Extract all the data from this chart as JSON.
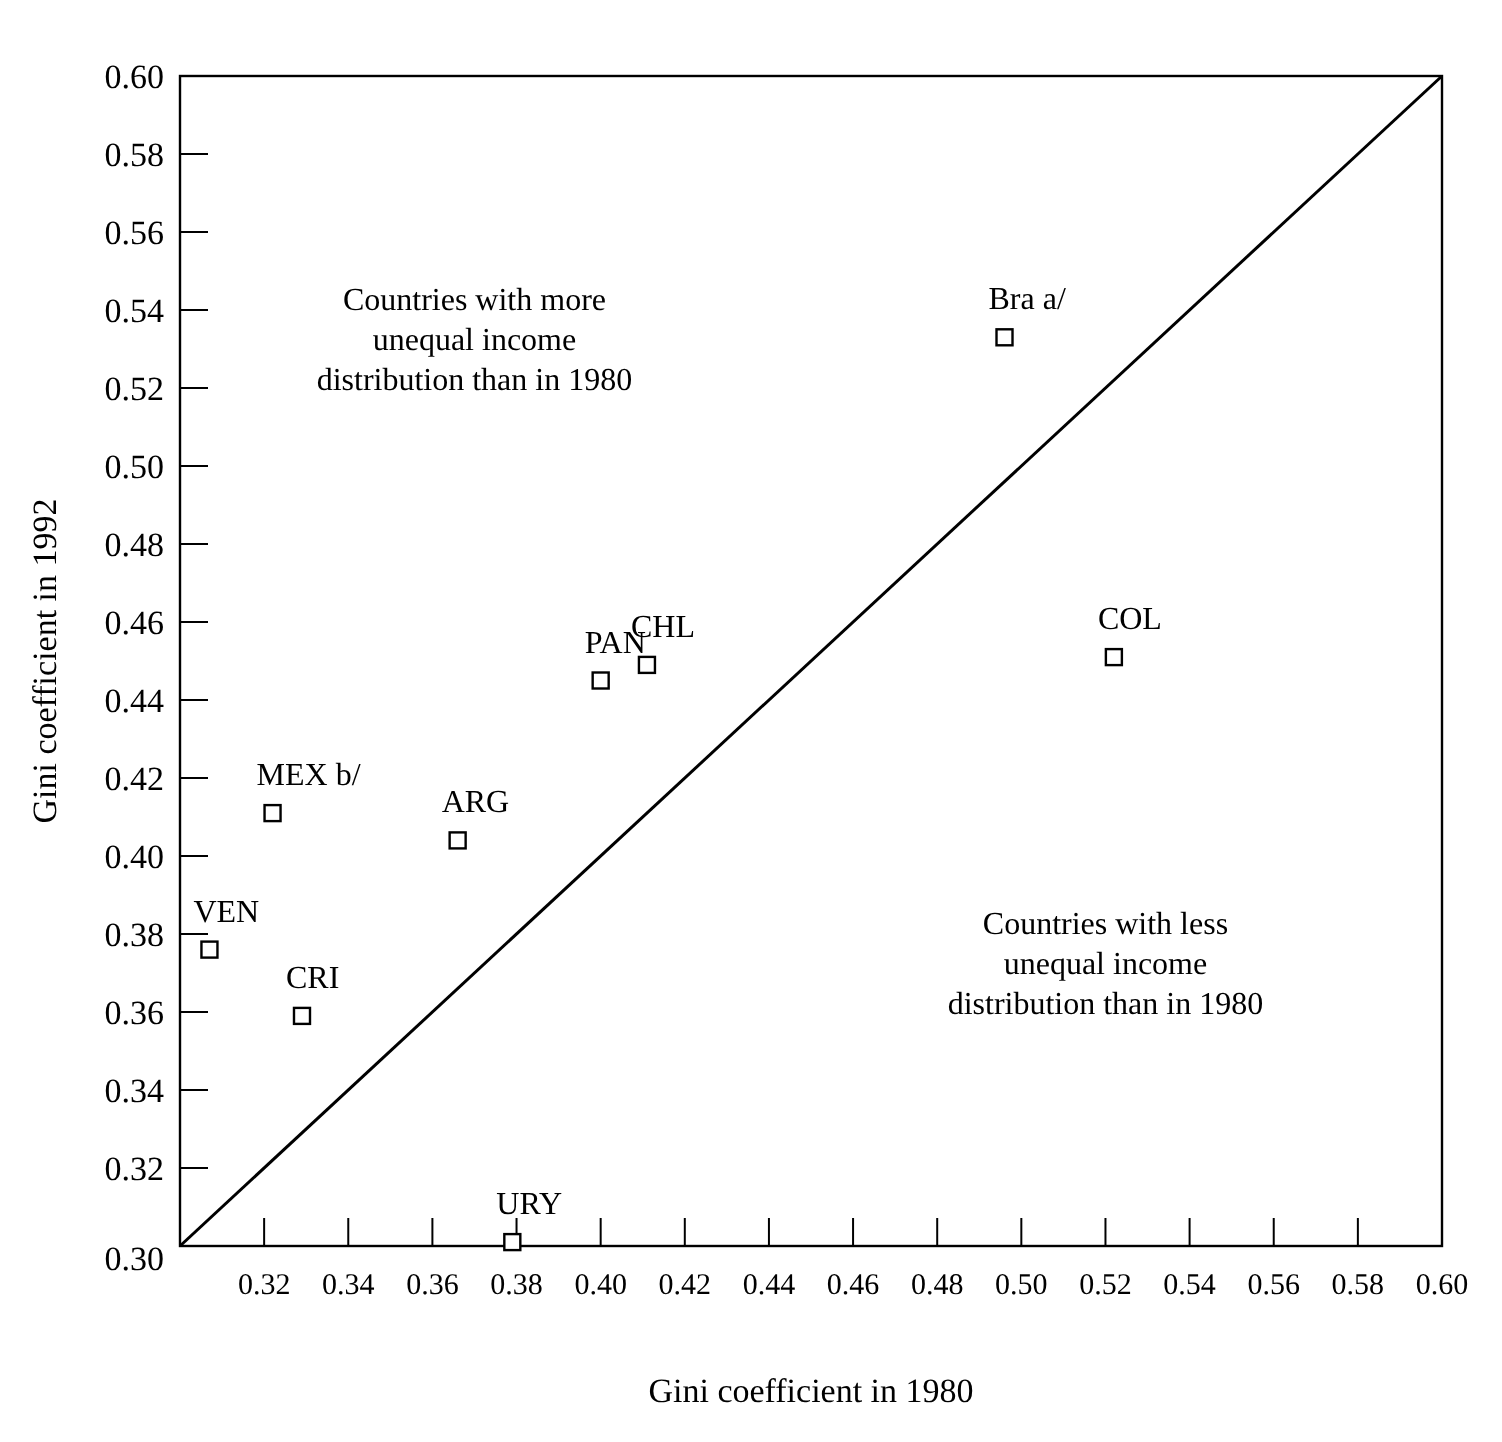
{
  "chart_data": {
    "type": "scatter",
    "xlabel": "Gini coefficient in 1980",
    "ylabel": "Gini coefficient in 1992",
    "xlim": [
      0.3,
      0.6
    ],
    "ylim": [
      0.3,
      0.6
    ],
    "xticks": [
      {
        "value": 0.32,
        "label": "0.32"
      },
      {
        "value": 0.34,
        "label": "0.34"
      },
      {
        "value": 0.36,
        "label": "0.36"
      },
      {
        "value": 0.38,
        "label": "0.38"
      },
      {
        "value": 0.4,
        "label": "0.40"
      },
      {
        "value": 0.42,
        "label": "0.42"
      },
      {
        "value": 0.44,
        "label": "0.44"
      },
      {
        "value": 0.46,
        "label": "0.46"
      },
      {
        "value": 0.48,
        "label": "0.48"
      },
      {
        "value": 0.5,
        "label": "0.50"
      },
      {
        "value": 0.52,
        "label": "0.52"
      },
      {
        "value": 0.54,
        "label": "0.54"
      },
      {
        "value": 0.56,
        "label": "0.56"
      },
      {
        "value": 0.58,
        "label": "0.58"
      },
      {
        "value": 0.6,
        "label": "0.60"
      }
    ],
    "yticks": [
      {
        "value": 0.3,
        "label": "0.30"
      },
      {
        "value": 0.32,
        "label": "0.32"
      },
      {
        "value": 0.34,
        "label": "0.34"
      },
      {
        "value": 0.36,
        "label": "0.36"
      },
      {
        "value": 0.38,
        "label": "0.38"
      },
      {
        "value": 0.4,
        "label": "0.40"
      },
      {
        "value": 0.42,
        "label": "0.42"
      },
      {
        "value": 0.44,
        "label": "0.44"
      },
      {
        "value": 0.46,
        "label": "0.46"
      },
      {
        "value": 0.48,
        "label": "0.48"
      },
      {
        "value": 0.5,
        "label": "0.50"
      },
      {
        "value": 0.52,
        "label": "0.52"
      },
      {
        "value": 0.54,
        "label": "0.54"
      },
      {
        "value": 0.56,
        "label": "0.56"
      },
      {
        "value": 0.58,
        "label": "0.58"
      },
      {
        "value": 0.6,
        "label": "0.60"
      }
    ],
    "grid": false,
    "marker": "square",
    "series": [
      {
        "color": "#000000",
        "x": [
          0.307,
          0.322,
          0.329,
          0.366,
          0.379,
          0.4,
          0.411,
          0.496,
          0.522
        ],
        "values": [
          0.376,
          0.411,
          0.359,
          0.404,
          0.301,
          0.445,
          0.449,
          0.533,
          0.451
        ]
      },
      {
        "type": "line",
        "color": "#000000",
        "marker": "none",
        "x": [
          0.3,
          0.6
        ],
        "values": [
          0.3,
          0.6
        ]
      }
    ],
    "annotations": [
      "Countries with more\nunequal income\ndistribution than in 1980",
      "Countries with less\nunequal income\ndistribution than in 1980",
      {
        "text": "VEN",
        "x": 0.307,
        "y": 0.376
      },
      {
        "text": "MEX b/",
        "x": 0.322,
        "y": 0.411
      },
      {
        "text": "CRI",
        "x": 0.329,
        "y": 0.359
      },
      {
        "text": "ARG",
        "x": 0.366,
        "y": 0.404
      },
      {
        "text": "URY",
        "x": 0.379,
        "y": 0.301
      },
      {
        "text": "PAN",
        "x": 0.4,
        "y": 0.445
      },
      {
        "text": "CHL",
        "x": 0.411,
        "y": 0.449
      },
      {
        "text": "Bra a/",
        "x": 0.496,
        "y": 0.533
      },
      {
        "text": "COL",
        "x": 0.522,
        "y": 0.451
      }
    ]
  }
}
